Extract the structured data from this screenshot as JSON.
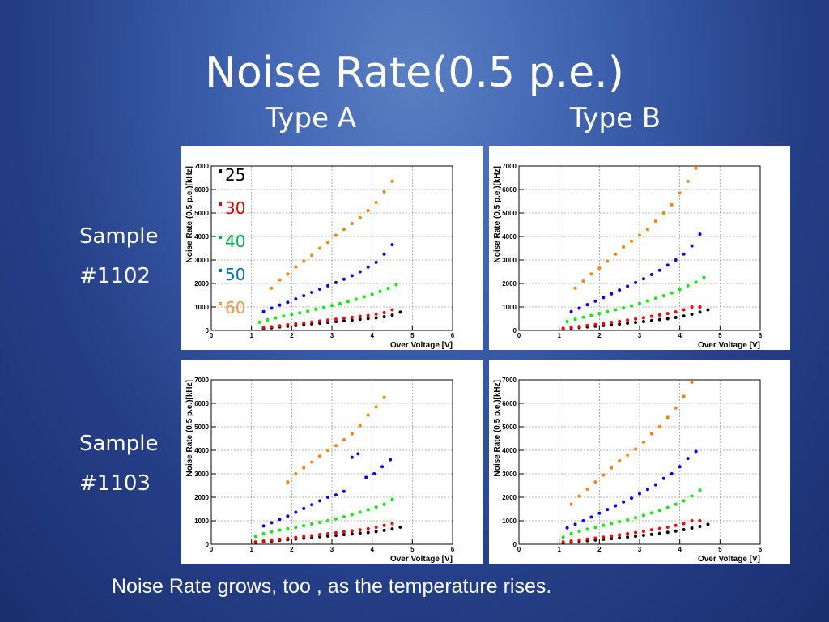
{
  "slide": {
    "title": "Noise Rate(0.5 p.e.)",
    "col_a": "Type A",
    "col_b": "Type B",
    "row_1": [
      "Sample",
      "#1102"
    ],
    "row_2": [
      "Sample",
      "#1103"
    ],
    "caption": "Noise Rate grows, too , as the temperature rises."
  },
  "legend": [
    {
      "label": "25",
      "color": "#000000"
    },
    {
      "label": "30",
      "color": "#e00000"
    },
    {
      "label": "40",
      "color": "#00b050"
    },
    {
      "label": "50",
      "color": "#0070c0"
    },
    {
      "label": "60",
      "color": "#f79646"
    }
  ],
  "chart_data": [
    {
      "panel": "type-a-sample-1102",
      "type": "scatter",
      "xlabel": "Over Voltage [V]",
      "ylabel": "Noise Rate (0.5 p.e.)[kHz]",
      "xlim": [
        0,
        6
      ],
      "ylim": [
        0,
        7000
      ],
      "xticks": [
        0,
        1,
        2,
        3,
        4,
        5,
        6
      ],
      "yticks": [
        0,
        1000,
        2000,
        3000,
        4000,
        5000,
        6000,
        7000
      ],
      "grid": true,
      "series": [
        {
          "color": "#000000",
          "x": [
            1.3,
            1.5,
            1.7,
            1.9,
            2.1,
            2.3,
            2.5,
            2.7,
            2.9,
            3.1,
            3.3,
            3.5,
            3.7,
            3.9,
            4.1,
            4.3,
            4.5,
            4.7
          ],
          "y": [
            80,
            110,
            150,
            180,
            210,
            250,
            280,
            310,
            340,
            380,
            410,
            440,
            480,
            510,
            540,
            580,
            650,
            780
          ]
        },
        {
          "color": "#ff0000",
          "x": [
            1.3,
            1.5,
            1.7,
            1.9,
            2.1,
            2.3,
            2.5,
            2.7,
            2.9,
            3.1,
            3.3,
            3.5,
            3.7,
            3.9,
            4.1,
            4.3,
            4.5
          ],
          "y": [
            120,
            160,
            200,
            240,
            280,
            320,
            360,
            400,
            440,
            480,
            520,
            560,
            600,
            640,
            700,
            760,
            880
          ]
        },
        {
          "color": "#00ee00",
          "x": [
            1.2,
            1.4,
            1.6,
            1.8,
            2.0,
            2.2,
            2.4,
            2.6,
            2.8,
            3.0,
            3.2,
            3.4,
            3.6,
            3.8,
            4.0,
            4.2,
            4.4,
            4.6
          ],
          "y": [
            350,
            450,
            530,
            610,
            680,
            750,
            820,
            900,
            980,
            1060,
            1140,
            1230,
            1330,
            1430,
            1540,
            1660,
            1790,
            1950
          ]
        },
        {
          "color": "#0000ff",
          "x": [
            1.3,
            1.5,
            1.7,
            1.9,
            2.1,
            2.3,
            2.5,
            2.7,
            2.9,
            3.1,
            3.3,
            3.5,
            3.7,
            3.9,
            4.1,
            4.3,
            4.5
          ],
          "y": [
            800,
            950,
            1080,
            1200,
            1340,
            1480,
            1620,
            1760,
            1900,
            2040,
            2180,
            2330,
            2500,
            2700,
            2900,
            3250,
            3650
          ]
        },
        {
          "color": "#ff8000",
          "x": [
            1.5,
            1.7,
            1.9,
            2.1,
            2.3,
            2.5,
            2.7,
            2.9,
            3.1,
            3.3,
            3.5,
            3.7,
            3.9,
            4.1,
            4.3,
            4.5
          ],
          "y": [
            1800,
            2150,
            2400,
            2700,
            2950,
            3200,
            3500,
            3750,
            4050,
            4300,
            4550,
            4800,
            5100,
            5450,
            5900,
            6350
          ]
        }
      ]
    },
    {
      "panel": "type-b-sample-1102",
      "type": "scatter",
      "xlabel": "Over Voltage [V]",
      "ylabel": "Noise Rate (0.5 p.e.)[kHz]",
      "xlim": [
        0,
        6
      ],
      "ylim": [
        0,
        7000
      ],
      "xticks": [
        0,
        1,
        2,
        3,
        4,
        5,
        6
      ],
      "yticks": [
        0,
        1000,
        2000,
        3000,
        4000,
        5000,
        6000,
        7000
      ],
      "grid": true,
      "series": [
        {
          "color": "#000000",
          "x": [
            1.1,
            1.3,
            1.5,
            1.7,
            1.9,
            2.1,
            2.3,
            2.5,
            2.7,
            2.9,
            3.1,
            3.3,
            3.5,
            3.7,
            3.9,
            4.1,
            4.3,
            4.5,
            4.7
          ],
          "y": [
            60,
            90,
            120,
            150,
            180,
            210,
            240,
            270,
            310,
            340,
            380,
            420,
            460,
            500,
            550,
            610,
            690,
            780,
            880
          ]
        },
        {
          "color": "#ff0000",
          "x": [
            1.1,
            1.3,
            1.5,
            1.7,
            1.9,
            2.1,
            2.3,
            2.5,
            2.7,
            2.9,
            3.1,
            3.3,
            3.5,
            3.7,
            3.9,
            4.1,
            4.3,
            4.5
          ],
          "y": [
            90,
            130,
            170,
            210,
            250,
            290,
            340,
            390,
            440,
            490,
            540,
            600,
            660,
            720,
            790,
            880,
            1000,
            1000
          ]
        },
        {
          "color": "#00ee00",
          "x": [
            1.2,
            1.4,
            1.6,
            1.8,
            2.0,
            2.2,
            2.4,
            2.6,
            2.8,
            3.0,
            3.2,
            3.4,
            3.6,
            3.8,
            4.0,
            4.2,
            4.4,
            4.6
          ],
          "y": [
            380,
            480,
            560,
            640,
            720,
            800,
            880,
            960,
            1050,
            1150,
            1260,
            1370,
            1480,
            1600,
            1740,
            1900,
            2050,
            2250
          ]
        },
        {
          "color": "#0000ff",
          "x": [
            1.3,
            1.5,
            1.7,
            1.9,
            2.1,
            2.3,
            2.5,
            2.7,
            2.9,
            3.1,
            3.3,
            3.5,
            3.7,
            3.9,
            4.1,
            4.3,
            4.5
          ],
          "y": [
            800,
            950,
            1100,
            1250,
            1400,
            1560,
            1720,
            1880,
            2040,
            2200,
            2380,
            2560,
            2780,
            3000,
            3250,
            3600,
            4100
          ]
        },
        {
          "color": "#ff8000",
          "x": [
            1.4,
            1.6,
            1.8,
            2.0,
            2.2,
            2.4,
            2.6,
            2.8,
            3.0,
            3.2,
            3.4,
            3.6,
            3.8,
            4.0,
            4.2,
            4.4
          ],
          "y": [
            1800,
            2100,
            2400,
            2650,
            2950,
            3250,
            3550,
            3800,
            4050,
            4300,
            4650,
            5000,
            5350,
            5850,
            6350,
            6900
          ]
        }
      ]
    },
    {
      "panel": "type-a-sample-1103",
      "type": "scatter",
      "xlabel": "Over Voltage [V]",
      "ylabel": "Noise Rate (0.5 p.e.)[kHz]",
      "xlim": [
        0,
        6
      ],
      "ylim": [
        0,
        7000
      ],
      "xticks": [
        0,
        1,
        2,
        3,
        4,
        5,
        6
      ],
      "yticks": [
        0,
        1000,
        2000,
        3000,
        4000,
        5000,
        6000,
        7000
      ],
      "grid": true,
      "series": [
        {
          "color": "#000000",
          "x": [
            1.1,
            1.3,
            1.5,
            1.7,
            1.9,
            2.1,
            2.3,
            2.5,
            2.7,
            2.9,
            3.1,
            3.3,
            3.5,
            3.7,
            3.9,
            4.1,
            4.3,
            4.5,
            4.7
          ],
          "y": [
            80,
            110,
            140,
            170,
            200,
            230,
            260,
            290,
            320,
            350,
            380,
            410,
            440,
            470,
            500,
            540,
            590,
            650,
            730
          ]
        },
        {
          "color": "#ff0000",
          "x": [
            1.1,
            1.3,
            1.5,
            1.7,
            1.9,
            2.1,
            2.3,
            2.5,
            2.7,
            2.9,
            3.1,
            3.3,
            3.5,
            3.7,
            3.9,
            4.1,
            4.3,
            4.5
          ],
          "y": [
            100,
            140,
            180,
            210,
            250,
            290,
            330,
            370,
            410,
            450,
            490,
            530,
            570,
            610,
            660,
            720,
            800,
            880
          ]
        },
        {
          "color": "#00ee00",
          "x": [
            1.1,
            1.3,
            1.5,
            1.7,
            1.9,
            2.1,
            2.3,
            2.5,
            2.7,
            2.9,
            3.1,
            3.3,
            3.5,
            3.7,
            3.9,
            4.1,
            4.3,
            4.5
          ],
          "y": [
            330,
            450,
            530,
            600,
            660,
            720,
            790,
            860,
            930,
            1000,
            1080,
            1170,
            1260,
            1360,
            1470,
            1580,
            1700,
            1900
          ]
        },
        {
          "color": "#0000ff",
          "x": [
            1.3,
            1.5,
            1.7,
            1.9,
            2.1,
            2.3,
            2.5,
            2.7,
            2.9,
            3.1,
            3.3,
            3.5,
            3.65,
            3.85,
            4.05,
            4.25,
            4.45
          ],
          "y": [
            780,
            920,
            1060,
            1200,
            1360,
            1520,
            1680,
            1850,
            2000,
            2100,
            2250,
            3700,
            3850,
            2850,
            3000,
            3300,
            3600
          ]
        },
        {
          "color": "#ff8000",
          "x": [
            1.9,
            2.1,
            2.3,
            2.5,
            2.7,
            2.9,
            3.1,
            3.3,
            3.5,
            3.7,
            3.9,
            4.1,
            4.3
          ],
          "y": [
            2650,
            3000,
            3250,
            3500,
            3750,
            4000,
            4200,
            4450,
            4700,
            5050,
            5500,
            5850,
            6250
          ]
        }
      ]
    },
    {
      "panel": "type-b-sample-1103",
      "type": "scatter",
      "xlabel": "Over Voltage [V]",
      "ylabel": "Noise Rate (0.5 p.e.)[kHz]",
      "xlim": [
        0,
        6
      ],
      "ylim": [
        0,
        7000
      ],
      "xticks": [
        0,
        1,
        2,
        3,
        4,
        5,
        6
      ],
      "yticks": [
        0,
        1000,
        2000,
        3000,
        4000,
        5000,
        6000,
        7000
      ],
      "grid": true,
      "series": [
        {
          "color": "#000000",
          "x": [
            1.1,
            1.3,
            1.5,
            1.7,
            1.9,
            2.1,
            2.3,
            2.5,
            2.7,
            2.9,
            3.1,
            3.3,
            3.5,
            3.7,
            3.9,
            4.1,
            4.3,
            4.5,
            4.7
          ],
          "y": [
            60,
            90,
            120,
            150,
            180,
            210,
            240,
            270,
            300,
            340,
            380,
            420,
            460,
            510,
            560,
            620,
            690,
            760,
            850
          ]
        },
        {
          "color": "#ff0000",
          "x": [
            1.1,
            1.3,
            1.5,
            1.7,
            1.9,
            2.1,
            2.3,
            2.5,
            2.7,
            2.9,
            3.1,
            3.3,
            3.5,
            3.7,
            3.9,
            4.1,
            4.3,
            4.5
          ],
          "y": [
            100,
            140,
            180,
            220,
            260,
            300,
            350,
            400,
            450,
            500,
            550,
            610,
            670,
            730,
            800,
            880,
            1000,
            1000
          ]
        },
        {
          "color": "#00ee00",
          "x": [
            1.1,
            1.3,
            1.5,
            1.7,
            1.9,
            2.1,
            2.3,
            2.5,
            2.7,
            2.9,
            3.1,
            3.3,
            3.5,
            3.7,
            3.9,
            4.1,
            4.3,
            4.5
          ],
          "y": [
            300,
            450,
            550,
            640,
            720,
            800,
            880,
            960,
            1040,
            1130,
            1230,
            1330,
            1440,
            1560,
            1700,
            1850,
            2050,
            2300
          ]
        },
        {
          "color": "#0000ff",
          "x": [
            1.2,
            1.4,
            1.6,
            1.8,
            2.0,
            2.2,
            2.4,
            2.6,
            2.8,
            3.0,
            3.2,
            3.4,
            3.6,
            3.8,
            4.0,
            4.2,
            4.4
          ],
          "y": [
            700,
            850,
            1000,
            1160,
            1320,
            1480,
            1640,
            1800,
            1960,
            2150,
            2330,
            2530,
            2800,
            3000,
            3300,
            3650,
            3950
          ]
        },
        {
          "color": "#ff8000",
          "x": [
            1.3,
            1.5,
            1.7,
            1.9,
            2.1,
            2.3,
            2.5,
            2.7,
            2.9,
            3.1,
            3.3,
            3.5,
            3.7,
            3.9,
            4.1,
            4.3
          ],
          "y": [
            1700,
            2050,
            2350,
            2650,
            2950,
            3250,
            3550,
            3800,
            4050,
            4350,
            4700,
            5000,
            5400,
            5800,
            6300,
            6900
          ]
        }
      ]
    }
  ]
}
